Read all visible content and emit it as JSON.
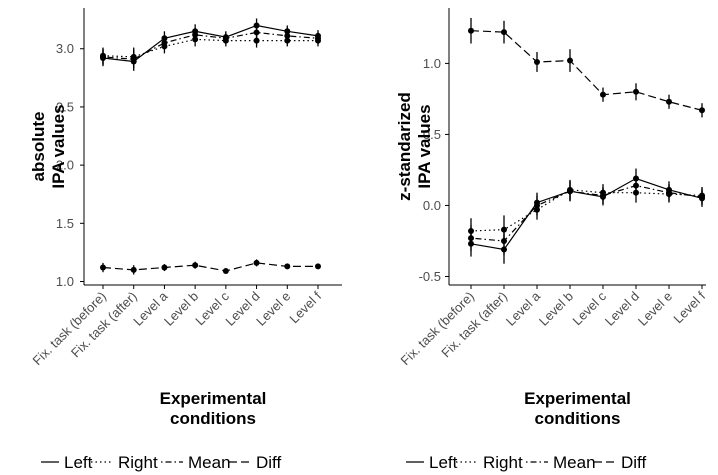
{
  "chart_data": [
    {
      "type": "line",
      "ylabel": [
        "absolute",
        "IPA values"
      ],
      "xlabel": [
        "Experimental",
        "conditions"
      ],
      "categories": [
        "Fix. task (before)",
        "Fix. task (after)",
        "Level a",
        "Level b",
        "Level c",
        "Level d",
        "Level e",
        "Level f"
      ],
      "ylim": [
        0.97,
        3.35
      ],
      "yticks": [
        1.0,
        1.5,
        2.0,
        2.5,
        3.0
      ],
      "ytick_labels": [
        "1.0",
        "1.5",
        "2.0",
        "2.5",
        "3.0"
      ],
      "grid": false,
      "series": [
        {
          "name": "Left",
          "dash": "solid",
          "values": [
            2.92,
            2.89,
            3.09,
            3.15,
            3.1,
            3.2,
            3.15,
            3.11
          ],
          "err": [
            0.07,
            0.08,
            0.06,
            0.06,
            0.05,
            0.06,
            0.05,
            0.05
          ]
        },
        {
          "name": "Right",
          "dash": "dotted",
          "values": [
            2.94,
            2.93,
            3.02,
            3.08,
            3.07,
            3.07,
            3.07,
            3.07
          ],
          "err": [
            0.07,
            0.08,
            0.06,
            0.06,
            0.05,
            0.06,
            0.05,
            0.05
          ]
        },
        {
          "name": "Mean",
          "dash": "dotdash",
          "values": [
            2.93,
            2.91,
            3.05,
            3.12,
            3.09,
            3.14,
            3.11,
            3.09
          ],
          "err": [
            0.07,
            0.08,
            0.06,
            0.06,
            0.05,
            0.06,
            0.05,
            0.05
          ]
        },
        {
          "name": "Diff",
          "dash": "longdash",
          "values": [
            1.12,
            1.1,
            1.12,
            1.14,
            1.09,
            1.16,
            1.13,
            1.13
          ],
          "err": [
            0.04,
            0.04,
            0.03,
            0.03,
            0.02,
            0.03,
            0.02,
            0.02
          ]
        }
      ]
    },
    {
      "type": "line",
      "ylabel": [
        "z-standarized",
        "IPA values"
      ],
      "xlabel": [
        "Experimental",
        "conditions"
      ],
      "categories": [
        "Fix. task (before)",
        "Fix. task (after)",
        "Level a",
        "Level b",
        "Level c",
        "Level d",
        "Level e",
        "Level f"
      ],
      "ylim": [
        -0.56,
        1.39
      ],
      "yticks": [
        -0.5,
        0.0,
        0.5,
        1.0
      ],
      "ytick_labels": [
        "-0.5",
        "0.0",
        "0.5",
        "1.0"
      ],
      "grid": false,
      "series": [
        {
          "name": "Left",
          "dash": "solid",
          "values": [
            -0.27,
            -0.31,
            0.02,
            0.1,
            0.06,
            0.19,
            0.11,
            0.05
          ],
          "err": [
            0.09,
            0.1,
            0.07,
            0.07,
            0.06,
            0.07,
            0.06,
            0.06
          ]
        },
        {
          "name": "Right",
          "dash": "dotted",
          "values": [
            -0.18,
            -0.17,
            -0.03,
            0.11,
            0.09,
            0.09,
            0.08,
            0.07
          ],
          "err": [
            0.09,
            0.1,
            0.07,
            0.07,
            0.06,
            0.07,
            0.06,
            0.06
          ]
        },
        {
          "name": "Mean",
          "dash": "dotdash",
          "values": [
            -0.23,
            -0.25,
            0.0,
            0.1,
            0.07,
            0.14,
            0.09,
            0.06
          ],
          "err": [
            0.09,
            0.1,
            0.07,
            0.07,
            0.06,
            0.07,
            0.06,
            0.06
          ]
        },
        {
          "name": "Diff",
          "dash": "longdash",
          "values": [
            1.23,
            1.22,
            1.01,
            1.02,
            0.78,
            0.8,
            0.73,
            0.67
          ],
          "err": [
            0.09,
            0.08,
            0.07,
            0.08,
            0.05,
            0.06,
            0.05,
            0.05
          ]
        }
      ]
    }
  ],
  "legend": {
    "position": "bottom",
    "items": [
      {
        "label": "Left",
        "dash": "solid"
      },
      {
        "label": "Right",
        "dash": "dotted"
      },
      {
        "label": "Mean",
        "dash": "dotdash"
      },
      {
        "label": "Diff",
        "dash": "longdash"
      }
    ]
  },
  "colors": {
    "line": "#000000",
    "tick_text": "#4d4d4d",
    "axis": "#000000",
    "background": "#ffffff"
  }
}
